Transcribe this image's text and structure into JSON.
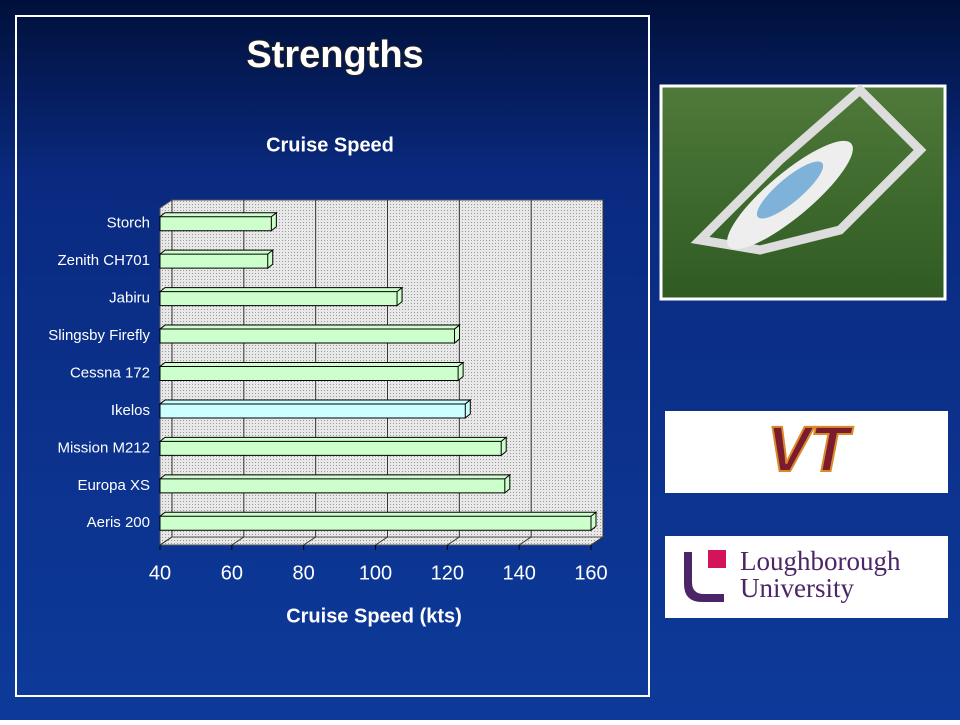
{
  "slide_title": "Strengths",
  "chart_data": {
    "type": "hbar",
    "title": "Cruise Speed",
    "x_label": "Cruise Speed (kts)",
    "categories": [
      "Storch",
      "Zenith CH701",
      "Jabiru",
      "Slingsby Firefly",
      "Cessna 172",
      "Ikelos",
      "Mission M212",
      "Europa XS",
      "Aeris 200"
    ],
    "values": [
      71,
      70,
      106,
      122,
      123,
      125,
      135,
      136,
      160
    ],
    "colors": [
      "#ccffcc",
      "#ccffcc",
      "#ccffcc",
      "#ccffcc",
      "#ccffcc",
      "#ccffff",
      "#ccffcc",
      "#ccffcc",
      "#ccffcc"
    ],
    "xlim": [
      40,
      160
    ],
    "xticks": [
      40,
      60,
      80,
      100,
      120,
      140,
      160
    ],
    "grid": true
  },
  "logos": {
    "vt": "VT",
    "loughborough": [
      "Loughborough",
      "University"
    ]
  }
}
